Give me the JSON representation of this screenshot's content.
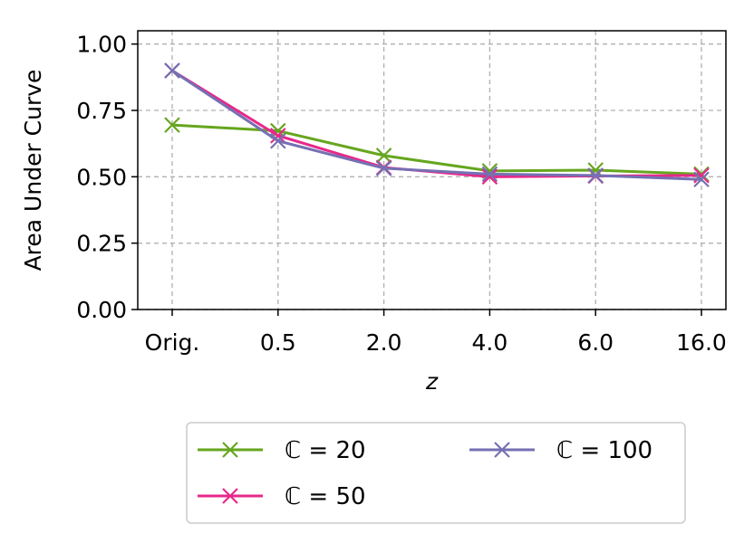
{
  "chart_data": {
    "type": "line",
    "xlabel": "z",
    "ylabel": "Area Under Curve",
    "categories": [
      "Orig.",
      "0.5",
      "2.0",
      "4.0",
      "6.0",
      "16.0"
    ],
    "ylim": [
      0,
      1.05
    ],
    "yticks": [
      "0.00",
      "0.25",
      "0.50",
      "0.75",
      "1.00"
    ],
    "ytick_values": [
      0,
      0.25,
      0.5,
      0.75,
      1.0
    ],
    "grid": true,
    "legend_placement": "below",
    "series": [
      {
        "name": "ℂ = 20",
        "color": "#66a61e",
        "marker": "x",
        "values": [
          0.695,
          0.673,
          0.58,
          0.522,
          0.525,
          0.51
        ]
      },
      {
        "name": "ℂ = 50",
        "color": "#e7298a",
        "marker": "x",
        "values": [
          0.9,
          0.655,
          0.535,
          0.5,
          0.503,
          0.505
        ]
      },
      {
        "name": "ℂ = 100",
        "color": "#7570b3",
        "marker": "x",
        "values": [
          0.9,
          0.635,
          0.532,
          0.51,
          0.505,
          0.49
        ]
      }
    ]
  }
}
